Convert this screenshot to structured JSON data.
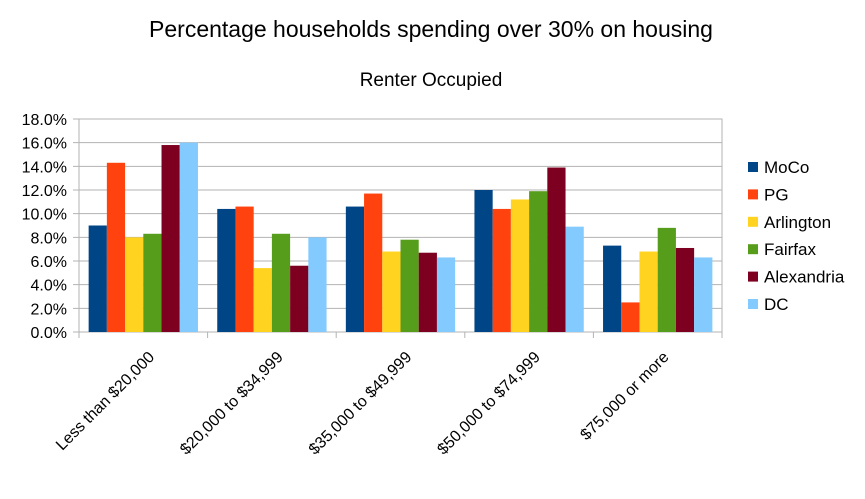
{
  "chart_data": {
    "type": "bar",
    "title": "Percentage households spending over 30% on housing",
    "subtitle": "Renter Occupied",
    "xlabel": "",
    "ylabel": "",
    "ylim": [
      0,
      18
    ],
    "ytick_step": 2,
    "ytick_labels": [
      "0.0%",
      "2.0%",
      "4.0%",
      "6.0%",
      "8.0%",
      "10.0%",
      "12.0%",
      "14.0%",
      "16.0%",
      "18.0%"
    ],
    "categories": [
      "Less than $20,000",
      "$20,000 to $34,999",
      "$35,000 to $49,999",
      "$50,000 to $74,999",
      "$75,000 or more"
    ],
    "grid": true,
    "legend_position": "right",
    "series": [
      {
        "name": "MoCo",
        "color": "#004586",
        "values": [
          9.0,
          10.4,
          10.6,
          12.0,
          7.3
        ]
      },
      {
        "name": "PG",
        "color": "#ff420e",
        "values": [
          14.3,
          10.6,
          11.7,
          10.4,
          2.5
        ]
      },
      {
        "name": "Arlington",
        "color": "#ffd320",
        "values": [
          8.0,
          5.4,
          6.8,
          11.2,
          6.8
        ]
      },
      {
        "name": "Fairfax",
        "color": "#579d1c",
        "values": [
          8.3,
          8.3,
          7.8,
          11.9,
          8.8
        ]
      },
      {
        "name": "Alexandria",
        "color": "#7e0021",
        "values": [
          15.8,
          5.6,
          6.7,
          13.9,
          7.1
        ]
      },
      {
        "name": "DC",
        "color": "#83caff",
        "values": [
          16.0,
          8.0,
          6.3,
          8.9,
          6.3
        ]
      }
    ]
  }
}
